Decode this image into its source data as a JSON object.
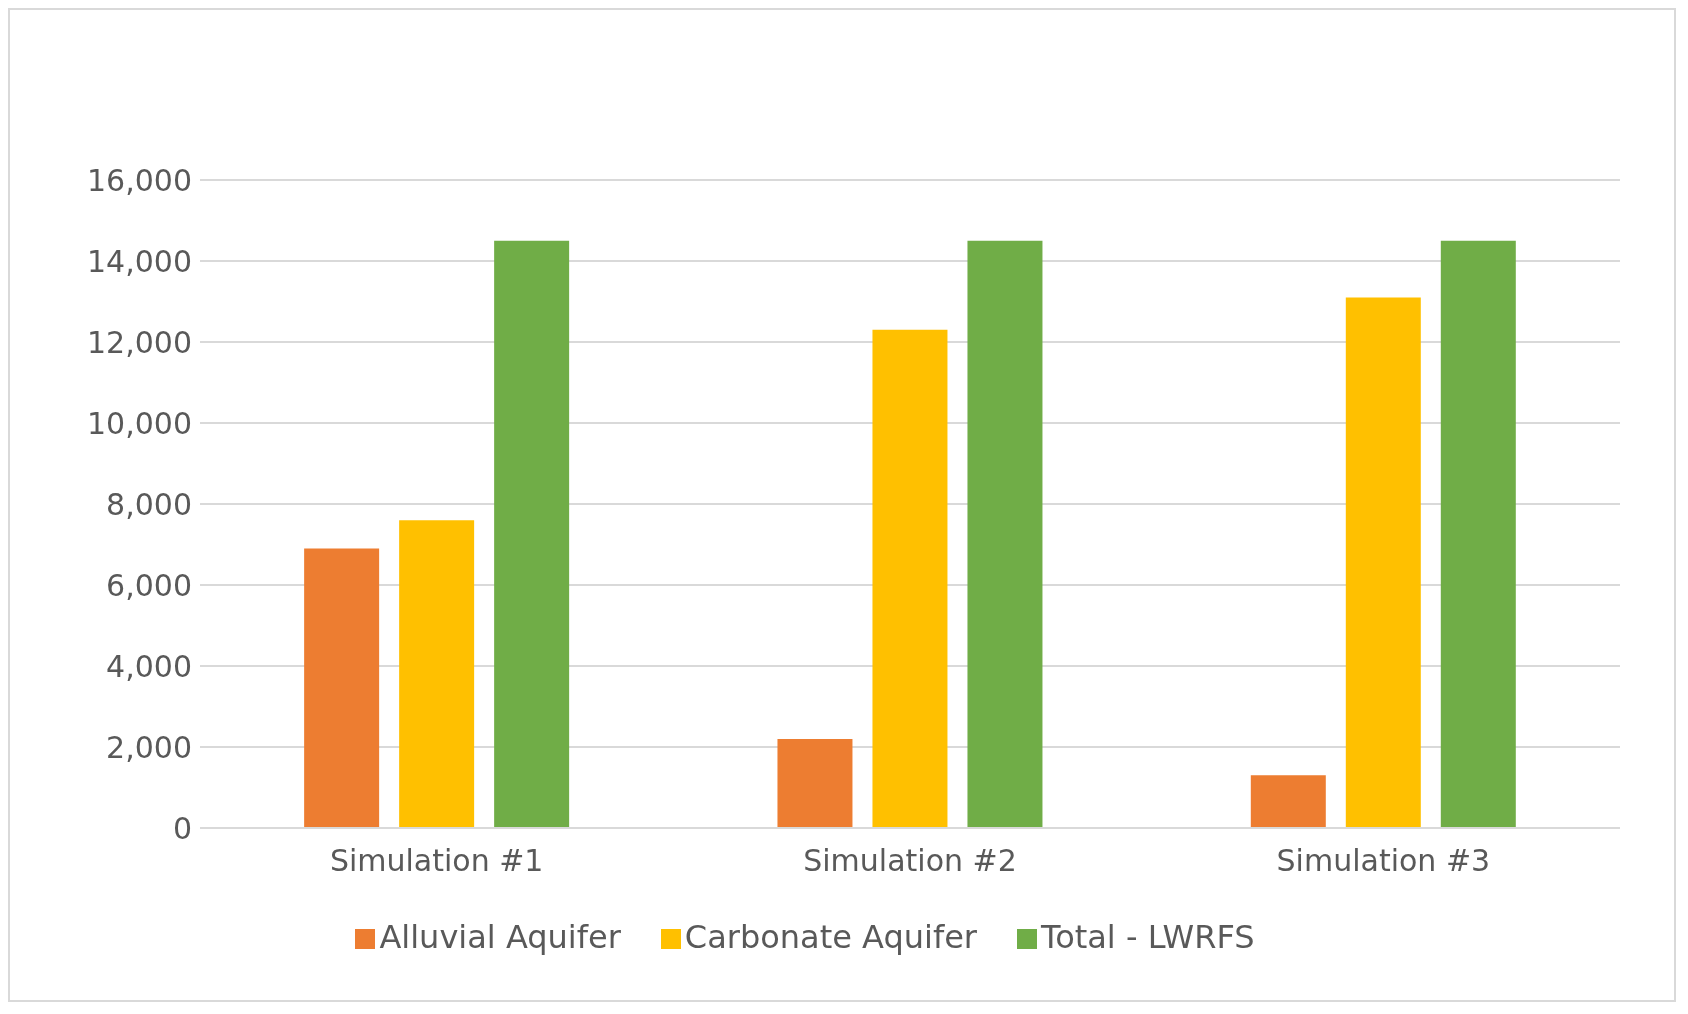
{
  "chart_data": {
    "type": "bar",
    "categories": [
      "Simulation #1",
      "Simulation #2",
      "Simulation #3"
    ],
    "series": [
      {
        "name": "Alluvial Aquifer",
        "color": "#ed7d31",
        "values": [
          6900,
          2200,
          1300
        ]
      },
      {
        "name": "Carbonate Aquifer",
        "color": "#ffc000",
        "values": [
          7600,
          12300,
          13100
        ]
      },
      {
        "name": "Total - LWRFS",
        "color": "#70ad47",
        "values": [
          14500,
          14500,
          14500
        ]
      }
    ],
    "ylim": [
      0,
      16000
    ],
    "yticks": [
      {
        "value": 0,
        "label": "0"
      },
      {
        "value": 2000,
        "label": "2,000"
      },
      {
        "value": 4000,
        "label": "4,000"
      },
      {
        "value": 6000,
        "label": "6,000"
      },
      {
        "value": 8000,
        "label": "8,000"
      },
      {
        "value": 10000,
        "label": "10,000"
      },
      {
        "value": 12000,
        "label": "12,000"
      },
      {
        "value": 14000,
        "label": "14,000"
      },
      {
        "value": 16000,
        "label": "16,000"
      }
    ],
    "grid": "y",
    "legend": "bottom"
  }
}
